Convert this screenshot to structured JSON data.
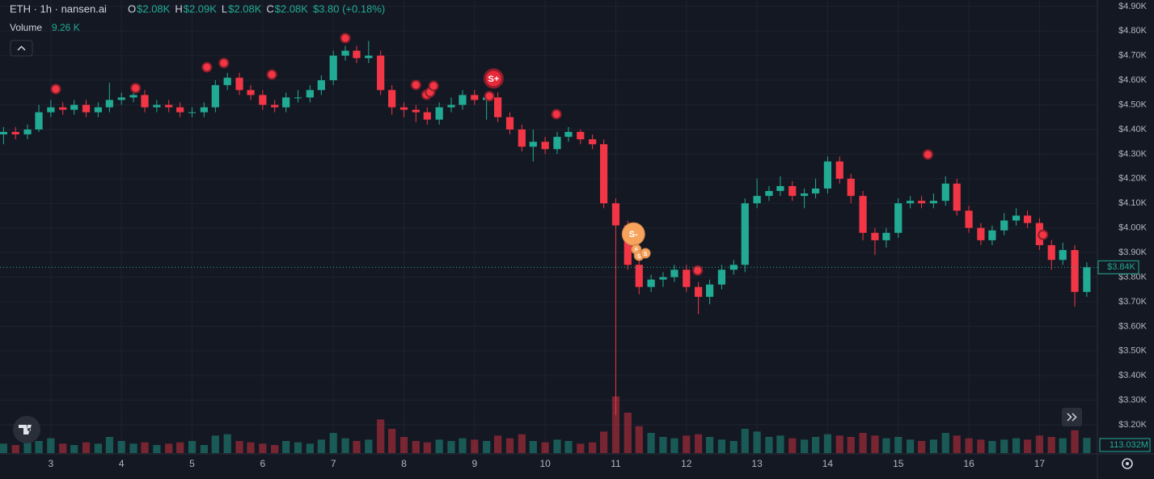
{
  "chart_data": {
    "type": "candlestick",
    "header": {
      "symbol": "ETH · 1h · nansen.ai",
      "ohlc": [
        {
          "key": "O",
          "value": "$2.08K"
        },
        {
          "key": "H",
          "value": "$2.09K"
        },
        {
          "key": "L",
          "value": "$2.08K"
        },
        {
          "key": "C",
          "value": "$2.08K"
        }
      ],
      "change": "$3.80 (+0.18%)",
      "volume_name": "Volume",
      "volume_value": "9.26 K"
    },
    "x": [
      2.33,
      2.5,
      2.67,
      2.83,
      3,
      3.17,
      3.33,
      3.5,
      3.67,
      3.83,
      4,
      4.17,
      4.33,
      4.5,
      4.67,
      4.83,
      5,
      5.17,
      5.33,
      5.5,
      5.67,
      5.83,
      6,
      6.17,
      6.33,
      6.5,
      6.67,
      6.83,
      7,
      7.17,
      7.33,
      7.5,
      7.67,
      7.83,
      8,
      8.17,
      8.33,
      8.5,
      8.67,
      8.83,
      9,
      9.17,
      9.33,
      9.5,
      9.67,
      9.83,
      10,
      10.17,
      10.33,
      10.5,
      10.67,
      10.83,
      11,
      11.17,
      11.33,
      11.5,
      11.67,
      11.83,
      12,
      12.17,
      12.33,
      12.5,
      12.67,
      12.83,
      13,
      13.17,
      13.33,
      13.5,
      13.67,
      13.83,
      14,
      14.17,
      14.33,
      14.5,
      14.67,
      14.83,
      15,
      15.17,
      15.33,
      15.5,
      15.67,
      15.83,
      16,
      16.17,
      16.33,
      16.5,
      16.67,
      16.83,
      17,
      17.17,
      17.33,
      17.5,
      17.67
    ],
    "open": [
      4380,
      4390,
      4380,
      4400,
      4470,
      4490,
      4480,
      4500,
      4470,
      4490,
      4520,
      4530,
      4540,
      4490,
      4500,
      4490,
      4470,
      4470,
      4490,
      4580,
      4610,
      4560,
      4540,
      4500,
      4490,
      4530,
      4530,
      4560,
      4600,
      4700,
      4720,
      4690,
      4700,
      4560,
      4490,
      4480,
      4470,
      4440,
      4490,
      4500,
      4540,
      4520,
      4530,
      4450,
      4400,
      4330,
      4350,
      4320,
      4370,
      4390,
      4360,
      4340,
      4100,
      4010,
      3850,
      3760,
      3790,
      3800,
      3830,
      3760,
      3720,
      3770,
      3830,
      3850,
      4100,
      4130,
      4150,
      4170,
      4130,
      4140,
      4160,
      4270,
      4200,
      4130,
      3980,
      3950,
      3980,
      4100,
      4110,
      4100,
      4110,
      4180,
      4070,
      4000,
      3950,
      3990,
      4030,
      4050,
      4020,
      3930,
      3870,
      3910,
      3740
    ],
    "high": [
      4410,
      4410,
      4420,
      4500,
      4520,
      4510,
      4520,
      4520,
      4510,
      4590,
      4550,
      4560,
      4560,
      4520,
      4520,
      4510,
      4490,
      4510,
      4600,
      4630,
      4630,
      4580,
      4560,
      4520,
      4550,
      4560,
      4580,
      4620,
      4720,
      4740,
      4740,
      4760,
      4720,
      4580,
      4510,
      4500,
      4490,
      4510,
      4530,
      4560,
      4560,
      4550,
      4550,
      4470,
      4420,
      4400,
      4370,
      4390,
      4410,
      4400,
      4380,
      4360,
      4120,
      4030,
      3870,
      3810,
      3820,
      3850,
      3850,
      3780,
      3790,
      3850,
      3870,
      4120,
      4200,
      4170,
      4210,
      4190,
      4160,
      4200,
      4290,
      4290,
      4220,
      4150,
      4000,
      4000,
      4120,
      4130,
      4130,
      4140,
      4210,
      4200,
      4090,
      4020,
      4010,
      4060,
      4080,
      4070,
      4040,
      3950,
      3940,
      3930,
      3860
    ],
    "low": [
      4340,
      4360,
      4360,
      4390,
      4450,
      4460,
      4460,
      4450,
      4450,
      4470,
      4500,
      4510,
      4470,
      4470,
      4470,
      4450,
      4450,
      4450,
      4470,
      4560,
      4540,
      4520,
      4480,
      4470,
      4470,
      4510,
      4510,
      4540,
      4580,
      4680,
      4670,
      4670,
      4540,
      4460,
      4450,
      4430,
      4420,
      4420,
      4470,
      4480,
      4500,
      4440,
      4430,
      4380,
      4310,
      4270,
      4300,
      4300,
      4350,
      4340,
      4320,
      4080,
      3240,
      3830,
      3730,
      3740,
      3760,
      3780,
      3740,
      3650,
      3690,
      3750,
      3810,
      3820,
      4080,
      4110,
      4130,
      4110,
      4080,
      4120,
      4140,
      4180,
      4100,
      3950,
      3890,
      3920,
      3960,
      4080,
      4080,
      4080,
      4090,
      4050,
      3980,
      3930,
      3930,
      3970,
      4010,
      4000,
      3910,
      3830,
      3850,
      3680,
      3720
    ],
    "close": [
      4390,
      4380,
      4400,
      4470,
      4490,
      4480,
      4500,
      4470,
      4490,
      4520,
      4530,
      4540,
      4490,
      4500,
      4490,
      4470,
      4470,
      4490,
      4580,
      4610,
      4560,
      4540,
      4500,
      4490,
      4530,
      4530,
      4560,
      4600,
      4700,
      4720,
      4690,
      4700,
      4560,
      4490,
      4480,
      4470,
      4440,
      4490,
      4500,
      4540,
      4520,
      4530,
      4450,
      4400,
      4330,
      4350,
      4320,
      4370,
      4390,
      4360,
      4340,
      4100,
      4010,
      3850,
      3760,
      3790,
      3800,
      3830,
      3760,
      3720,
      3770,
      3830,
      3850,
      4100,
      4130,
      4150,
      4170,
      4130,
      4140,
      4160,
      4270,
      4200,
      4130,
      3980,
      3950,
      3980,
      4100,
      4110,
      4100,
      4110,
      4180,
      4070,
      4000,
      3950,
      3990,
      4030,
      4050,
      4020,
      3930,
      3870,
      3910,
      3740,
      3840
    ],
    "volume": [
      70,
      60,
      80,
      90,
      110,
      70,
      60,
      80,
      70,
      120,
      90,
      70,
      80,
      60,
      70,
      80,
      90,
      60,
      130,
      140,
      90,
      80,
      70,
      60,
      90,
      80,
      70,
      100,
      150,
      110,
      90,
      100,
      250,
      180,
      120,
      90,
      80,
      100,
      90,
      110,
      100,
      90,
      130,
      110,
      140,
      90,
      80,
      100,
      90,
      70,
      80,
      160,
      420,
      300,
      200,
      150,
      120,
      110,
      130,
      140,
      120,
      100,
      90,
      180,
      160,
      120,
      130,
      110,
      100,
      120,
      140,
      130,
      120,
      150,
      130,
      110,
      120,
      100,
      90,
      100,
      150,
      130,
      110,
      100,
      90,
      100,
      110,
      100,
      130,
      120,
      110,
      170,
      113.032
    ],
    "volume_last_label": {
      "value": 113.032,
      "label": "113.032M"
    },
    "last_price": {
      "value": 3840,
      "label": "$3.84K"
    },
    "up_color": "#22ab94",
    "down_color": "#f23645",
    "markers": [
      {
        "x": 3.07,
        "price": 4564
      },
      {
        "x": 4.2,
        "price": 4568
      },
      {
        "x": 5.21,
        "price": 4653
      },
      {
        "x": 5.45,
        "price": 4670
      },
      {
        "x": 6.13,
        "price": 4623
      },
      {
        "x": 7.17,
        "price": 4771
      },
      {
        "x": 8.17,
        "price": 4581
      },
      {
        "x": 8.32,
        "price": 4541
      },
      {
        "x": 8.37,
        "price": 4551
      },
      {
        "x": 8.42,
        "price": 4577
      },
      {
        "x": 9.21,
        "price": 4535
      },
      {
        "x": 10.16,
        "price": 4462
      },
      {
        "x": 12.16,
        "price": 3827
      },
      {
        "x": 15.42,
        "price": 4298
      },
      {
        "x": 17.05,
        "price": 3972
      }
    ],
    "badges": [
      {
        "x": 9.27,
        "price": 4607,
        "label": "S+"
      },
      {
        "x": 11.25,
        "price": 3975,
        "label": "S-"
      },
      {
        "x": 11.29,
        "price": 3913,
        "label": "S"
      },
      {
        "x": 11.33,
        "price": 3887,
        "label": "S"
      },
      {
        "x": 11.42,
        "price": 3897,
        "label": "S"
      }
    ],
    "xlim": [
      2.28,
      17.82
    ],
    "xticks": [
      3,
      4,
      5,
      6,
      7,
      8,
      9,
      10,
      11,
      12,
      13,
      14,
      15,
      16,
      17
    ],
    "ylim": [
      3085,
      4926
    ],
    "yticks": [
      {
        "value": 3200,
        "label": "$3.20K"
      },
      {
        "value": 3300,
        "label": "$3.30K"
      },
      {
        "value": 3400,
        "label": "$3.40K"
      },
      {
        "value": 3500,
        "label": "$3.50K"
      },
      {
        "value": 3600,
        "label": "$3.60K"
      },
      {
        "value": 3700,
        "label": "$3.70K"
      },
      {
        "value": 3800,
        "label": "$3.80K"
      },
      {
        "value": 3900,
        "label": "$3.90K"
      },
      {
        "value": 4000,
        "label": "$4.00K"
      },
      {
        "value": 4100,
        "label": "$4.10K"
      },
      {
        "value": 4200,
        "label": "$4.20K"
      },
      {
        "value": 4300,
        "label": "$4.30K"
      },
      {
        "value": 4400,
        "label": "$4.40K"
      },
      {
        "value": 4500,
        "label": "$4.50K"
      },
      {
        "value": 4600,
        "label": "$4.60K"
      },
      {
        "value": 4700,
        "label": "$4.70K"
      },
      {
        "value": 4800,
        "label": "$4.80K"
      },
      {
        "value": 4900,
        "label": "$4.90K"
      }
    ],
    "vlim": [
      0,
      600
    ],
    "grid": true
  }
}
